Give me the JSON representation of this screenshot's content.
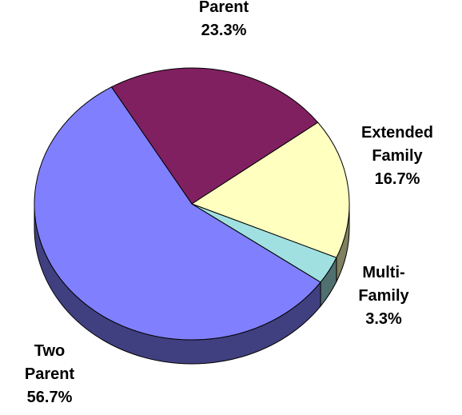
{
  "chart_data": {
    "type": "pie",
    "categories": [
      "Parent",
      "Extended Family",
      "Multi-Family",
      "Two Parent"
    ],
    "values": [
      23.3,
      16.7,
      3.3,
      56.7
    ],
    "value_labels": [
      "23.3%",
      "16.7%",
      "3.3%",
      "56.7%"
    ],
    "colors": [
      "#802060",
      "#ffffc0",
      "#a0e0e0",
      "#8080ff"
    ],
    "side_colors": [
      "#401030",
      "#808060",
      "#507070",
      "#404080"
    ]
  }
}
